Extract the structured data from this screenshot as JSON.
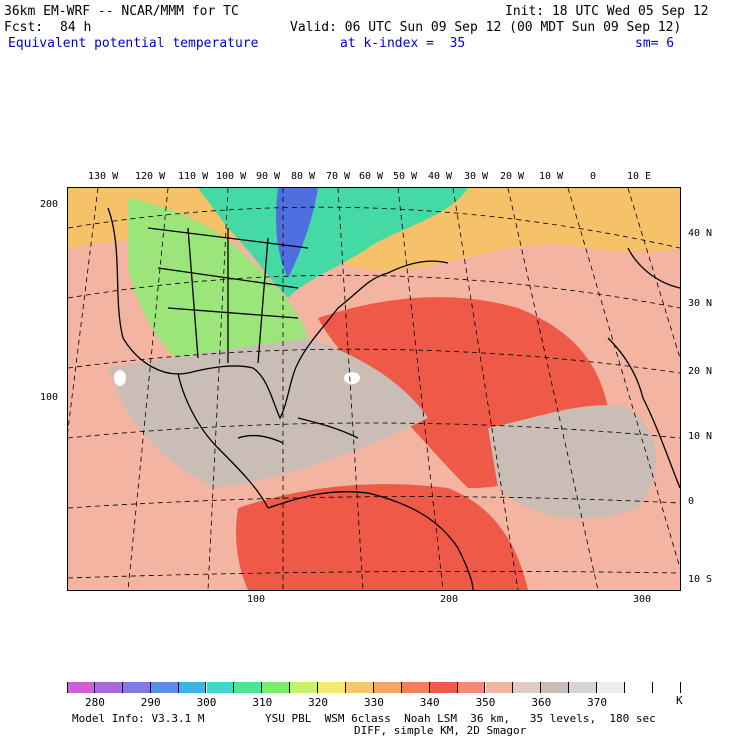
{
  "header": {
    "model": "36km EM-WRF -- NCAR/MMM for TC",
    "init": "Init: 18 UTC Wed 05 Sep 12",
    "fcst_label": "Fcst:",
    "fcst_value": "84 h",
    "valid": "Valid: 06 UTC Sun 09 Sep 12 (00 MDT Sun 09 Sep 12)",
    "field": "Equivalent potential temperature",
    "level": "at k-index =  35",
    "smoothing": "sm= 6"
  },
  "map": {
    "top_longitudes": [
      "130 W",
      "120 W",
      "110 W",
      "100 W",
      "90 W",
      "80 W",
      "70 W",
      "60 W",
      "50 W",
      "40 W",
      "30 W",
      "20 W",
      "10 W",
      "0",
      "10 E"
    ],
    "right_latitudes": [
      "40 N",
      "30 N",
      "20 N",
      "10 N",
      "0",
      "10 S"
    ],
    "left_grid": [
      "200",
      "100"
    ],
    "bottom_grid": [
      "100",
      "200",
      "300"
    ],
    "colors": {
      "cold_region": "#4f6fe0",
      "cool_region": "#45d9a6",
      "mild_region": "#9be57a",
      "warm_region": "#f5c26a",
      "hot_region": "#ee5a47",
      "tropics_region": "#f3b4a2",
      "neutral_region": "#c9bdb5",
      "peak_region": "#ffffff"
    }
  },
  "colorbar": {
    "colors": [
      "#cf5fd6",
      "#a76cd8",
      "#7f79e0",
      "#5a8ee6",
      "#3fb3e8",
      "#3ed7c8",
      "#4de590",
      "#79ec69",
      "#c8f06d",
      "#f6e772",
      "#f7c66f",
      "#f2a564",
      "#f17f58",
      "#ee5a47",
      "#f38a74",
      "#f3b4a2",
      "#e0ccc1",
      "#c9bdb5",
      "#d5d5d5",
      "#eeeeee",
      "#ffffff",
      "#ffffff"
    ],
    "labels": [
      "280",
      "290",
      "300",
      "310",
      "320",
      "330",
      "340",
      "350",
      "360",
      "370"
    ],
    "unit": "K"
  },
  "footer": {
    "line1_left": "Model Info: V3.3.1 M",
    "line1_right": "YSU PBL  WSM 6class  Noah LSM  36 km,   35 levels,  180 sec",
    "line2": "DIFF, simple KM, 2D Smagor"
  }
}
